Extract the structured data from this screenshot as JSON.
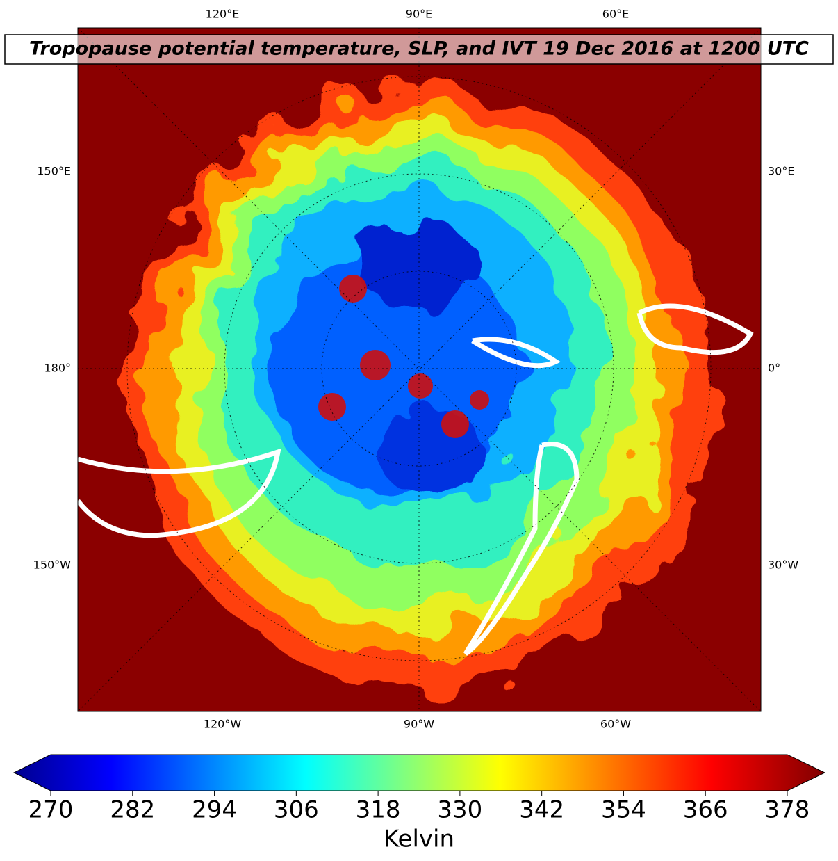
{
  "title": "Tropopause potential temperature, SLP, and IVT 19 Dec 2016 at 1200 UTC",
  "map": {
    "top_labels": [
      "120°E",
      "90°E",
      "60°E"
    ],
    "bottom_labels": [
      "120°W",
      "90°W",
      "60°W"
    ],
    "left_labels": [
      "150°E",
      "180°",
      "150°W"
    ],
    "right_labels": [
      "30°E",
      "0°",
      "30°W"
    ]
  },
  "colorbar": {
    "lim": [
      270,
      378
    ],
    "ticks": [
      270,
      282,
      294,
      306,
      318,
      330,
      342,
      354,
      366,
      378
    ],
    "label": "Kelvin"
  }
}
